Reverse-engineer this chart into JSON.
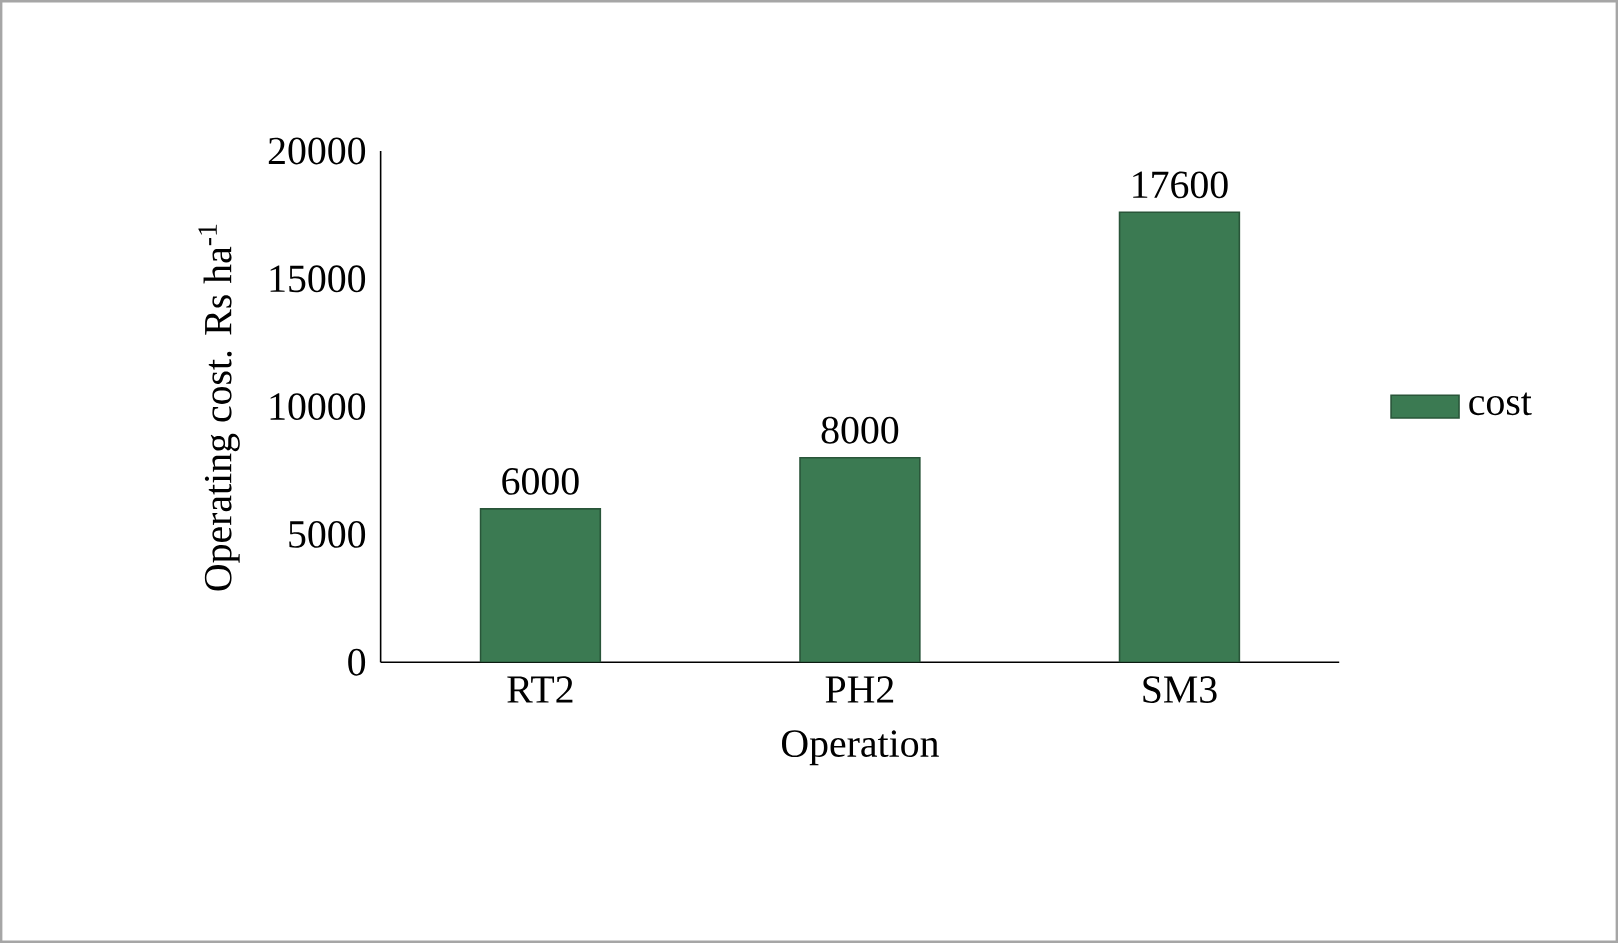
{
  "chart_data": {
    "type": "bar",
    "xlabel": "Operation",
    "ylabel": "Operating cost. Rs ha$^{-1}$",
    "categories": [
      "RT2",
      "PH2",
      "SM3"
    ],
    "series": [
      {
        "name": "cost",
        "color": "#3b7a52",
        "values": [
          6000,
          8000,
          17600
        ]
      }
    ],
    "ylim": [
      0,
      20000
    ],
    "yticks": [
      0,
      5000,
      10000,
      15000,
      20000
    ],
    "data_labels": true,
    "legend": "right"
  }
}
